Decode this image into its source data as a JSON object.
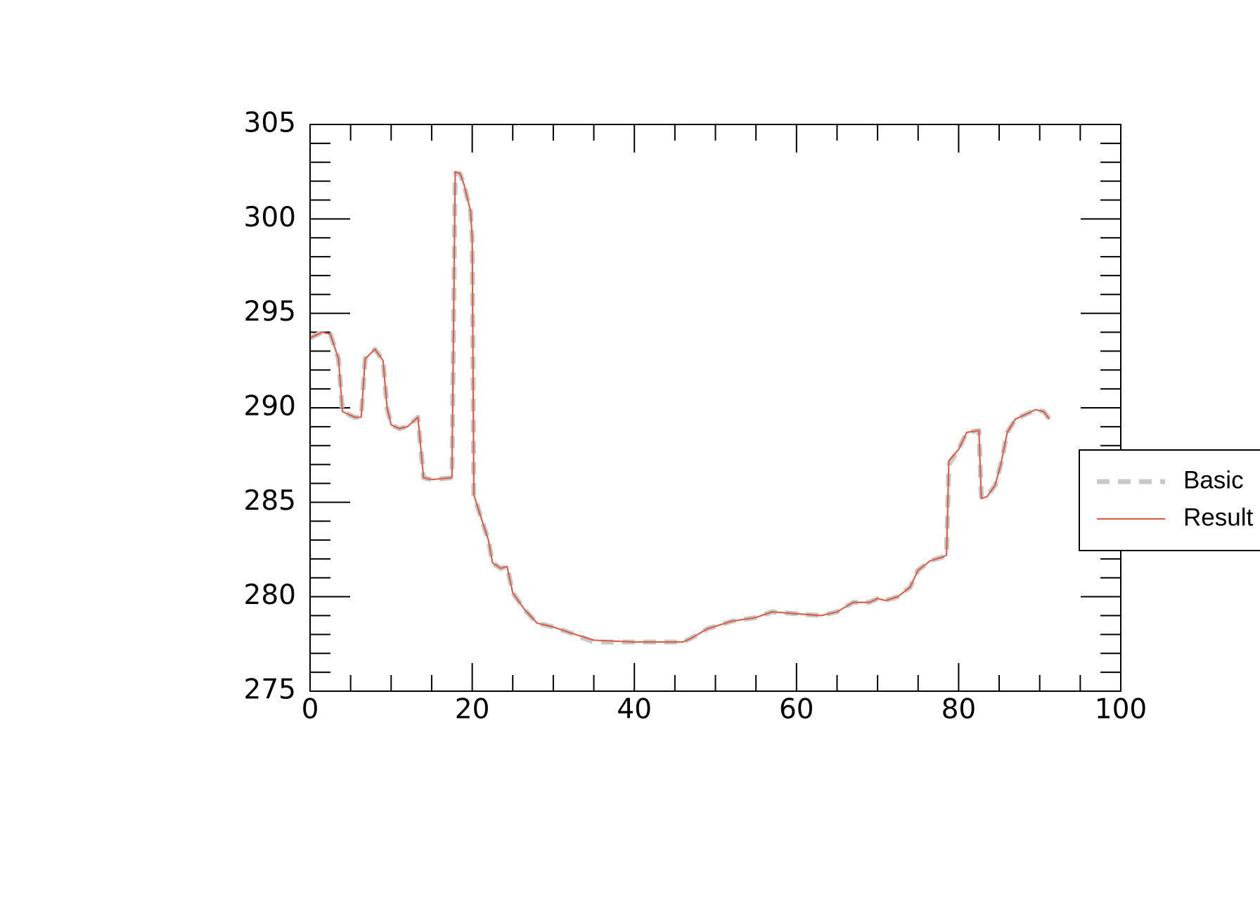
{
  "chart_data": {
    "type": "line",
    "x": [
      0,
      1.5,
      2.5,
      3.5,
      4,
      5.5,
      6.3,
      6.8,
      8,
      9,
      9.5,
      10,
      11,
      12,
      13.3,
      14,
      15,
      17.5,
      17.9,
      18.5,
      19,
      19.8,
      20,
      20.2,
      21,
      22,
      22.5,
      23.5,
      24.3,
      25,
      26.5,
      28,
      30,
      32,
      35,
      40,
      46,
      47,
      49,
      52,
      55,
      57,
      60,
      63,
      65,
      67,
      69,
      70,
      71,
      72.5,
      74,
      75,
      76.5,
      78,
      78.5,
      78.8,
      80,
      81,
      82.5,
      82.8,
      83.5,
      84.5,
      85.2,
      86,
      87,
      88.5,
      89.5,
      90.5,
      91.2
    ],
    "series": [
      {
        "name": "Basic",
        "color": "#c8c8c8",
        "dashed": true,
        "values": [
          293.7,
          294.0,
          293.9,
          292.6,
          289.8,
          289.5,
          289.5,
          292.6,
          293.1,
          292.5,
          290.0,
          289.1,
          288.9,
          289.0,
          289.5,
          286.3,
          286.2,
          286.3,
          302.4,
          302.4,
          301.8,
          300.4,
          299.0,
          285.4,
          284.3,
          283.0,
          281.8,
          281.5,
          281.6,
          280.2,
          279.3,
          278.6,
          278.4,
          278.1,
          277.6,
          277.6,
          277.6,
          277.8,
          278.3,
          278.7,
          278.9,
          279.2,
          279.1,
          279.0,
          279.2,
          279.7,
          279.7,
          279.9,
          279.8,
          280.0,
          280.5,
          281.4,
          281.9,
          282.1,
          282.2,
          287.0,
          287.8,
          288.7,
          288.8,
          285.3,
          285.3,
          285.9,
          287.0,
          288.7,
          289.4,
          289.7,
          289.9,
          289.8,
          289.4
        ]
      },
      {
        "name": "Result",
        "color": "#d9604a",
        "dashed": false,
        "values": [
          293.7,
          294.0,
          293.9,
          292.6,
          289.8,
          289.5,
          289.5,
          292.6,
          293.1,
          292.5,
          290.0,
          289.1,
          288.9,
          289.0,
          289.5,
          286.3,
          286.2,
          286.3,
          302.5,
          302.4,
          301.8,
          300.4,
          299.0,
          285.4,
          284.3,
          283.0,
          281.8,
          281.5,
          281.6,
          280.2,
          279.3,
          278.6,
          278.4,
          278.1,
          277.7,
          277.6,
          277.6,
          277.8,
          278.3,
          278.7,
          278.9,
          279.2,
          279.1,
          279.0,
          279.2,
          279.7,
          279.7,
          279.9,
          279.8,
          280.0,
          280.5,
          281.4,
          281.9,
          282.1,
          282.2,
          287.2,
          287.8,
          288.7,
          288.8,
          285.2,
          285.3,
          285.9,
          287.0,
          288.7,
          289.4,
          289.7,
          289.9,
          289.8,
          289.4
        ]
      }
    ],
    "xlim": [
      0,
      100
    ],
    "ylim": [
      275,
      305
    ],
    "xticks": [
      0,
      20,
      40,
      60,
      80,
      100
    ],
    "yticks": [
      275,
      280,
      285,
      290,
      295,
      300,
      305
    ],
    "xminorticks": [
      5,
      10,
      15,
      25,
      30,
      35,
      45,
      50,
      55,
      65,
      70,
      75,
      85,
      90,
      95
    ],
    "yminorticks": [
      276,
      277,
      278,
      279,
      281,
      282,
      283,
      284,
      286,
      287,
      288,
      289,
      291,
      292,
      293,
      294,
      296,
      297,
      298,
      299,
      301,
      302,
      303,
      304
    ],
    "legend": "right",
    "grid": false
  }
}
